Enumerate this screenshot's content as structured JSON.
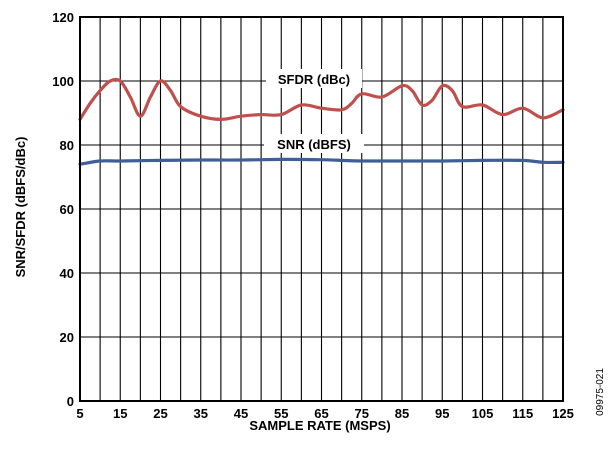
{
  "chart_data": {
    "type": "line",
    "xlabel": "SAMPLE RATE (MSPS)",
    "ylabel": "SNR/SFDR (dBFS/dBc)",
    "xlim": [
      5,
      125
    ],
    "ylim": [
      0,
      120
    ],
    "xticks": [
      5,
      15,
      25,
      35,
      45,
      55,
      65,
      75,
      85,
      95,
      105,
      115,
      125
    ],
    "yticks": [
      0,
      20,
      40,
      60,
      80,
      100,
      120
    ],
    "xtick_labels": [
      "5",
      "15",
      "25",
      "35",
      "45",
      "55",
      "65",
      "75",
      "85",
      "95",
      "105",
      "115",
      "125"
    ],
    "ytick_labels": [
      "0",
      "20",
      "40",
      "60",
      "80",
      "100",
      "120"
    ],
    "x_minor_step": 5,
    "y_grid_step": 20,
    "grid": true,
    "series": [
      {
        "name": "SFDR (dBc)",
        "color": "#c0504d",
        "x": [
          5,
          7.5,
          10,
          12.5,
          15,
          17.5,
          20,
          22.5,
          25,
          27.5,
          30,
          35,
          40,
          45,
          50,
          55,
          60,
          65,
          70,
          72.5,
          75,
          80,
          85,
          87.5,
          90,
          92.5,
          95,
          97.5,
          100,
          105,
          110,
          115,
          120,
          125
        ],
        "values": [
          88,
          93,
          97,
          100,
          100,
          95,
          89,
          95,
          100,
          97,
          92,
          89,
          88,
          89,
          89.5,
          89.5,
          92.5,
          91.5,
          91,
          93,
          96,
          95,
          98.5,
          97,
          92.5,
          94,
          98.5,
          97,
          92,
          92.5,
          89.5,
          91.5,
          88.5,
          91
        ]
      },
      {
        "name": "SNR (dBFS)",
        "color": "#3f5f96",
        "x": [
          5,
          10,
          15,
          25,
          35,
          45,
          55,
          65,
          70,
          75,
          85,
          95,
          105,
          115,
          120,
          125
        ],
        "values": [
          74,
          75,
          75,
          75.2,
          75.3,
          75.3,
          75.5,
          75.4,
          75.2,
          75,
          75,
          75,
          75.2,
          75.2,
          74.6,
          74.6
        ]
      }
    ],
    "annotations": [
      "SFDR (dBc)",
      "SNR (dBFS)"
    ]
  },
  "figure_id": "09975-021"
}
